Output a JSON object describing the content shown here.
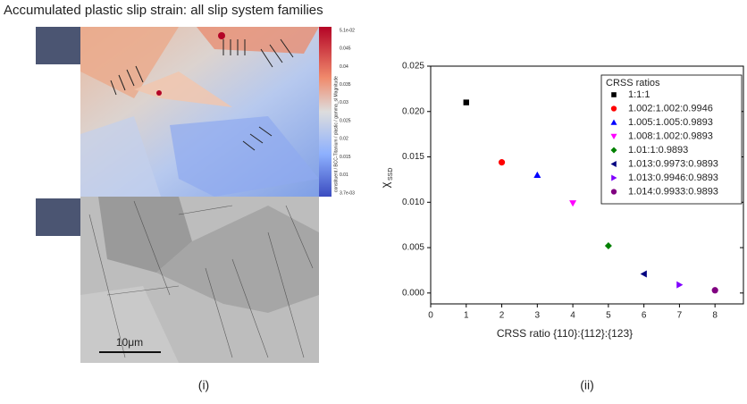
{
  "figure": {
    "title": "Accumulated plastic slip strain: all slip system families",
    "colorbar": {
      "labels": [
        "5.1e-02",
        "0.045",
        "0.04",
        "0.035",
        "0.03",
        "0.025",
        "0.02",
        "0.015",
        "0.01",
        "3.7e-03"
      ],
      "title": "constituent / BCC-Titanium / plastic / gamma_sl Magnitude"
    },
    "scale_bar": "10μm",
    "panel_labels": [
      "(i)",
      "(ii)"
    ]
  },
  "chart_data": {
    "type": "scatter",
    "xlabel": "CRSS ratio {110}:{112}:{123}",
    "ylabel": {
      "symbol": "χ",
      "subscript": "SSD"
    },
    "legend_title": "CRSS ratios",
    "legend": "upper right",
    "xlim": [
      0,
      8.8
    ],
    "ylim": [
      -0.0012,
      0.025
    ],
    "xticks": [
      0,
      1,
      2,
      3,
      4,
      5,
      6,
      7,
      8
    ],
    "yticks": [
      {
        "value": 0,
        "label": "0.000"
      },
      0.005,
      {
        "value": 0.01,
        "label": "0.010"
      },
      0.015,
      {
        "value": 0.02,
        "label": "0.020"
      },
      0.025
    ],
    "series": [
      {
        "name": "1:1:1",
        "color": "#000000",
        "marker": "square",
        "x": [
          1
        ],
        "values": [
          0.021
        ]
      },
      {
        "name": "1.002:1.002:0.9946",
        "color": "#ff0000",
        "marker": "circle",
        "x": [
          2
        ],
        "values": [
          0.0144
        ]
      },
      {
        "name": "1.005:1.005:0.9893",
        "color": "#0000ff",
        "marker": "triangle-up",
        "x": [
          3
        ],
        "values": [
          0.013
        ]
      },
      {
        "name": "1.008:1.002:0.9893",
        "color": "#ff00ff",
        "marker": "triangle-down",
        "x": [
          4
        ],
        "values": [
          0.0099
        ]
      },
      {
        "name": "1.01:1:0.9893",
        "color": "#008000",
        "marker": "diamond",
        "x": [
          5
        ],
        "values": [
          0.0052
        ]
      },
      {
        "name": "1.013:0.9973:0.9893",
        "color": "#000080",
        "marker": "triangle-left",
        "x": [
          6
        ],
        "values": [
          0.0021
        ]
      },
      {
        "name": "1.013:0.9946:0.9893",
        "color": "#8000ff",
        "marker": "triangle-right",
        "x": [
          7
        ],
        "values": [
          0.0009
        ]
      },
      {
        "name": "1.014:0.9933:0.9893",
        "color": "#800080",
        "marker": "circle",
        "x": [
          8
        ],
        "values": [
          0.0003
        ]
      }
    ]
  }
}
